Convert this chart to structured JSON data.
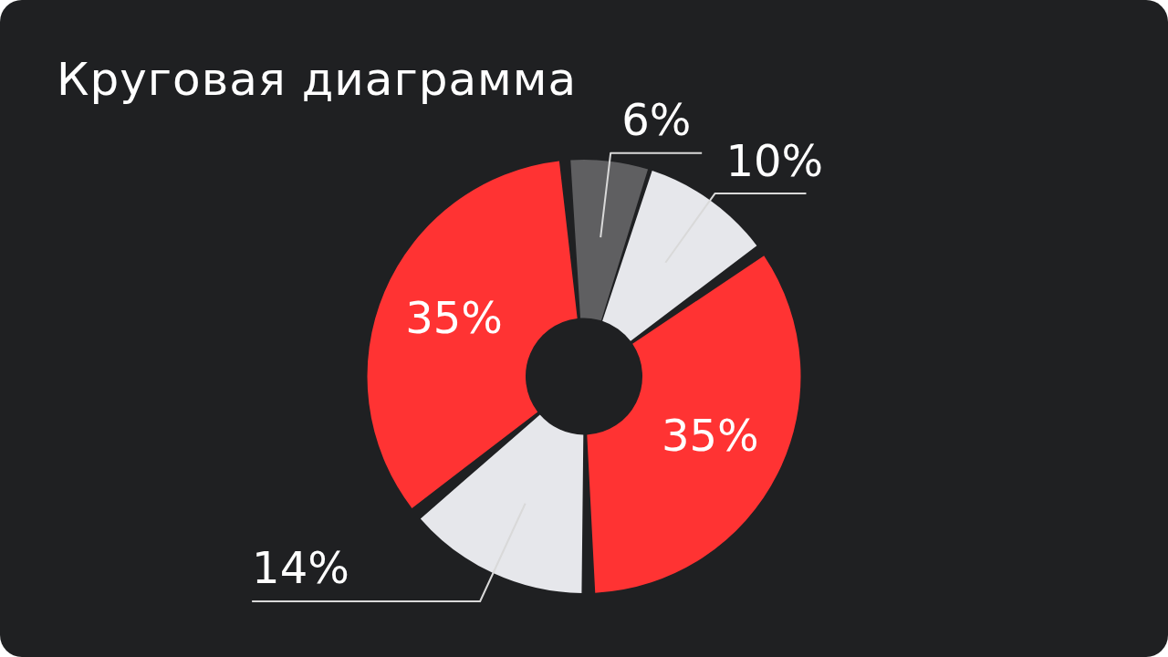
{
  "chart_data": {
    "type": "donut",
    "title": "Круговая диаграмма",
    "categories": [
      null,
      null,
      null,
      null,
      null
    ],
    "values": [
      6,
      10,
      35,
      14,
      35
    ],
    "colors": [
      "#5f5f61",
      "#e6e7eb",
      "#ff3333",
      "#e6e7eb",
      "#ff3333"
    ],
    "value_labels": [
      "6%",
      "10%",
      "35%",
      "14%",
      "35%"
    ],
    "legend": false
  }
}
